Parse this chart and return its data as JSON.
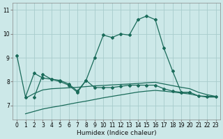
{
  "xlabel": "Humidex (Indice chaleur)",
  "bg_color": "#cce8e8",
  "grid_color": "#a8cccc",
  "line_color": "#1a6b5a",
  "xlim": [
    -0.5,
    23.5
  ],
  "ylim": [
    6.4,
    11.3
  ],
  "yticks": [
    7,
    8,
    9,
    10,
    11
  ],
  "xticks": [
    0,
    1,
    2,
    3,
    4,
    5,
    6,
    7,
    8,
    9,
    10,
    11,
    12,
    13,
    14,
    15,
    16,
    17,
    18,
    19,
    20,
    21,
    22,
    23
  ],
  "series1_x": [
    0,
    1,
    2,
    3,
    4,
    5,
    6,
    7,
    8,
    9,
    10,
    11,
    12,
    13,
    14,
    15,
    16,
    17,
    18,
    19,
    20,
    21,
    22,
    23
  ],
  "series1_y": [
    9.1,
    7.35,
    8.35,
    8.15,
    8.1,
    8.05,
    7.9,
    7.6,
    8.05,
    9.0,
    9.95,
    9.85,
    10.0,
    9.95,
    10.6,
    10.75,
    10.6,
    9.4,
    8.45,
    7.55,
    7.55,
    7.4,
    7.38,
    7.38
  ],
  "series2_x": [
    2,
    3,
    4,
    5,
    6,
    7,
    8,
    9,
    10,
    11,
    12,
    13,
    14,
    15,
    16,
    17,
    18,
    19,
    20
  ],
  "series2_y": [
    7.35,
    8.3,
    8.1,
    8.0,
    7.85,
    7.55,
    8.05,
    7.75,
    7.75,
    7.75,
    7.8,
    7.85,
    7.85,
    7.85,
    7.85,
    7.7,
    7.6,
    7.55,
    7.55
  ],
  "series3_x": [
    1,
    2,
    3,
    4,
    5,
    6,
    7,
    8,
    9,
    10,
    11,
    12,
    13,
    14,
    15,
    16,
    17,
    18,
    19,
    20,
    21,
    22,
    23
  ],
  "series3_y": [
    7.3,
    7.5,
    7.65,
    7.7,
    7.72,
    7.74,
    7.76,
    7.79,
    7.82,
    7.84,
    7.86,
    7.88,
    7.9,
    7.92,
    7.95,
    7.97,
    7.9,
    7.83,
    7.76,
    7.7,
    7.55,
    7.45,
    7.38
  ],
  "series4_x": [
    1,
    2,
    3,
    4,
    5,
    6,
    7,
    8,
    9,
    10,
    11,
    12,
    13,
    14,
    15,
    16,
    17,
    18,
    19,
    20,
    21,
    22,
    23
  ],
  "series4_y": [
    6.65,
    6.75,
    6.85,
    6.92,
    6.98,
    7.05,
    7.12,
    7.18,
    7.25,
    7.32,
    7.38,
    7.44,
    7.5,
    7.56,
    7.6,
    7.63,
    7.6,
    7.56,
    7.52,
    7.48,
    7.4,
    7.35,
    7.35
  ]
}
